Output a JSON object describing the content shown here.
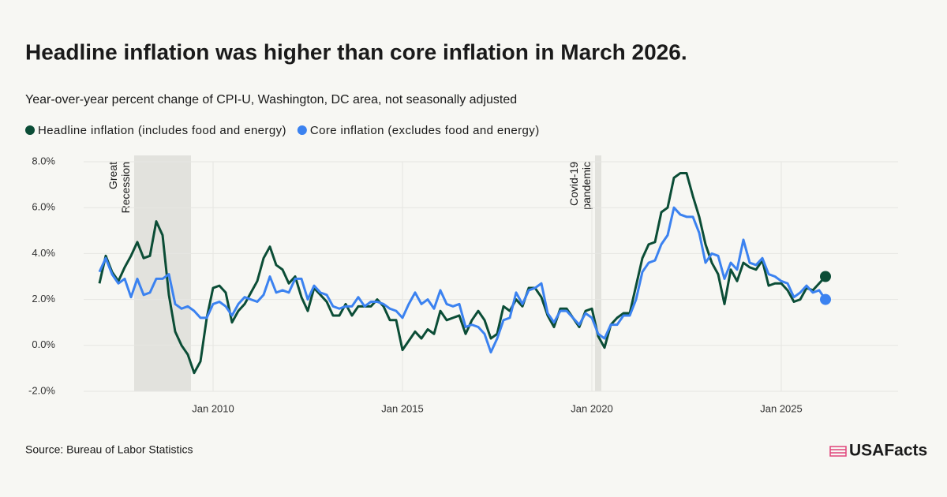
{
  "chart_data": {
    "type": "line",
    "title": "Headline inflation was higher than core inflation in March 2026.",
    "subtitle": "Year-over-year percent change of CPI-U, Washington, DC area, not seasonally adjusted",
    "source": "Source: Bureau of Labor Statistics",
    "brand": "USAFacts",
    "legend": "top-left",
    "grid": true,
    "x": [
      "2007-01",
      "2007-03",
      "2007-05",
      "2007-07",
      "2007-09",
      "2007-11",
      "2008-01",
      "2008-03",
      "2008-05",
      "2008-07",
      "2008-09",
      "2008-11",
      "2009-01",
      "2009-03",
      "2009-05",
      "2009-07",
      "2009-09",
      "2009-11",
      "2010-01",
      "2010-03",
      "2010-05",
      "2010-07",
      "2010-09",
      "2010-11",
      "2011-01",
      "2011-03",
      "2011-05",
      "2011-07",
      "2011-09",
      "2011-11",
      "2012-01",
      "2012-03",
      "2012-05",
      "2012-07",
      "2012-09",
      "2012-11",
      "2013-01",
      "2013-03",
      "2013-05",
      "2013-07",
      "2013-09",
      "2013-11",
      "2014-01",
      "2014-03",
      "2014-05",
      "2014-07",
      "2014-09",
      "2014-11",
      "2015-01",
      "2015-03",
      "2015-05",
      "2015-07",
      "2015-09",
      "2015-11",
      "2016-01",
      "2016-03",
      "2016-05",
      "2016-07",
      "2016-09",
      "2016-11",
      "2017-01",
      "2017-03",
      "2017-05",
      "2017-07",
      "2017-09",
      "2017-11",
      "2018-01",
      "2018-03",
      "2018-05",
      "2018-07",
      "2018-09",
      "2018-11",
      "2019-01",
      "2019-03",
      "2019-05",
      "2019-07",
      "2019-09",
      "2019-11",
      "2020-01",
      "2020-03",
      "2020-05",
      "2020-07",
      "2020-09",
      "2020-11",
      "2021-01",
      "2021-03",
      "2021-05",
      "2021-07",
      "2021-09",
      "2021-11",
      "2022-01",
      "2022-03",
      "2022-05",
      "2022-07",
      "2022-09",
      "2022-11",
      "2023-01",
      "2023-03",
      "2023-05",
      "2023-07",
      "2023-09",
      "2023-11",
      "2024-01",
      "2024-03",
      "2024-05",
      "2024-07",
      "2024-09",
      "2024-11",
      "2025-01",
      "2025-03",
      "2025-05",
      "2025-07",
      "2025-09",
      "2025-11",
      "2026-01",
      "2026-03"
    ],
    "series": [
      {
        "name": "Headline inflation (includes food and energy)",
        "color": "#0b4d36",
        "values": [
          2.7,
          3.9,
          3.2,
          2.8,
          3.4,
          3.9,
          4.5,
          3.8,
          3.9,
          5.4,
          4.8,
          2.2,
          0.6,
          0.0,
          -0.4,
          -1.2,
          -0.7,
          1.2,
          2.5,
          2.6,
          2.3,
          1.0,
          1.5,
          1.8,
          2.3,
          2.8,
          3.8,
          4.3,
          3.5,
          3.3,
          2.7,
          3.0,
          2.1,
          1.5,
          2.5,
          2.2,
          1.9,
          1.3,
          1.3,
          1.8,
          1.3,
          1.7,
          1.7,
          1.7,
          2.0,
          1.7,
          1.1,
          1.1,
          -0.2,
          0.2,
          0.6,
          0.3,
          0.7,
          0.5,
          1.5,
          1.1,
          1.2,
          1.3,
          0.5,
          1.1,
          1.5,
          1.1,
          0.3,
          0.5,
          1.7,
          1.5,
          2.0,
          1.7,
          2.5,
          2.5,
          2.1,
          1.3,
          0.8,
          1.6,
          1.6,
          1.2,
          0.8,
          1.5,
          1.6,
          0.4,
          -0.1,
          0.9,
          1.2,
          1.4,
          1.4,
          2.6,
          3.8,
          4.4,
          4.5,
          5.8,
          6.0,
          7.3,
          7.5,
          7.5,
          6.5,
          5.6,
          4.4,
          3.6,
          3.1,
          1.8,
          3.3,
          2.8,
          3.6,
          3.4,
          3.3,
          3.7,
          2.6,
          2.7,
          2.7,
          2.4,
          1.9,
          2.0,
          2.5,
          2.4,
          2.7,
          3.0
        ]
      },
      {
        "name": "Core inflation (excludes food and energy)",
        "color": "#3b82f0",
        "values": [
          3.2,
          3.8,
          3.1,
          2.7,
          2.9,
          2.1,
          2.9,
          2.2,
          2.3,
          2.9,
          2.9,
          3.1,
          1.8,
          1.6,
          1.7,
          1.5,
          1.2,
          1.2,
          1.8,
          1.9,
          1.7,
          1.3,
          1.8,
          2.1,
          2.0,
          1.9,
          2.2,
          3.0,
          2.3,
          2.4,
          2.3,
          2.9,
          2.9,
          2.0,
          2.6,
          2.3,
          2.2,
          1.7,
          1.6,
          1.7,
          1.7,
          2.1,
          1.7,
          1.9,
          1.9,
          1.8,
          1.6,
          1.5,
          1.2,
          1.8,
          2.3,
          1.8,
          2.0,
          1.6,
          2.4,
          1.8,
          1.7,
          1.8,
          0.8,
          0.9,
          0.8,
          0.5,
          -0.3,
          0.3,
          1.1,
          1.2,
          2.3,
          1.8,
          2.4,
          2.5,
          2.7,
          1.4,
          1.0,
          1.5,
          1.5,
          1.2,
          0.9,
          1.4,
          1.2,
          0.5,
          0.3,
          0.9,
          0.9,
          1.3,
          1.3,
          2.0,
          3.2,
          3.6,
          3.7,
          4.4,
          4.8,
          6.0,
          5.7,
          5.6,
          5.6,
          4.9,
          3.6,
          4.0,
          3.9,
          2.9,
          3.6,
          3.3,
          4.6,
          3.6,
          3.5,
          3.8,
          3.1,
          3.0,
          2.8,
          2.7,
          2.1,
          2.3,
          2.6,
          2.3,
          2.4,
          2.0
        ]
      }
    ],
    "shaded": [
      {
        "label": "Great Recession",
        "start": "2007-12",
        "end": "2009-06"
      },
      {
        "label": "Covid-19 pandemic",
        "start": "2020-02",
        "end": "2020-04"
      }
    ],
    "xlim": [
      "2006-08",
      "2028-02"
    ],
    "xticks": [
      {
        "value": "2010-01",
        "label": "Jan 2010"
      },
      {
        "value": "2015-01",
        "label": "Jan 2015"
      },
      {
        "value": "2020-01",
        "label": "Jan 2020"
      },
      {
        "value": "2025-01",
        "label": "Jan 2025"
      }
    ],
    "ylim": [
      -2,
      8
    ],
    "yticks": [
      {
        "value": 8,
        "label": "8.0%"
      },
      {
        "value": 6,
        "label": "6.0%"
      },
      {
        "value": 4,
        "label": "4.0%"
      },
      {
        "value": 2,
        "label": "2.0%"
      },
      {
        "value": 0,
        "label": "0.0%"
      },
      {
        "value": -2,
        "label": "-2.0%"
      }
    ]
  }
}
